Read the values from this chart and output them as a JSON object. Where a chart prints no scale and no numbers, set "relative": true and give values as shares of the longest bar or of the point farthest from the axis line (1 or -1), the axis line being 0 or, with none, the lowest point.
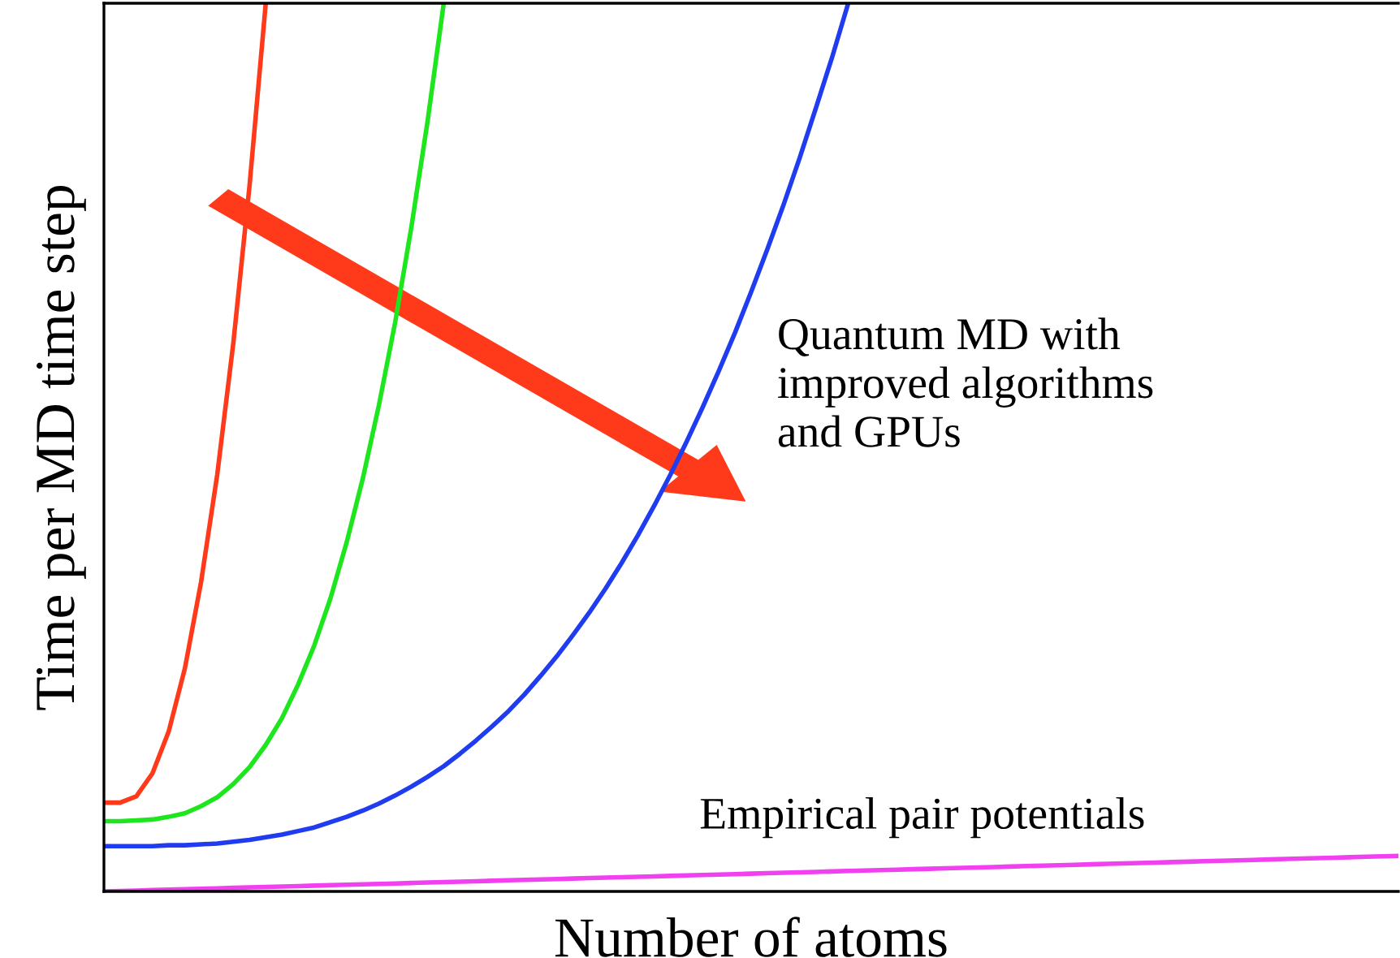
{
  "chart_data": {
    "type": "line",
    "relative": true,
    "xlabel": "Number of atoms",
    "ylabel": "Time per MD time step",
    "categories": [
      null,
      null,
      null,
      null,
      null,
      null,
      null,
      null,
      null,
      null,
      null,
      null,
      null,
      null,
      null,
      null,
      null,
      null,
      null,
      null,
      null,
      null,
      null,
      null,
      null,
      null,
      null,
      null,
      null,
      null,
      null,
      null,
      null,
      null,
      null,
      null,
      null,
      null,
      null,
      null,
      null,
      null,
      null,
      null,
      null,
      null,
      null,
      null,
      null,
      null,
      null,
      null,
      null,
      null,
      null,
      null,
      null,
      null,
      null,
      null,
      null,
      null,
      null,
      null,
      null,
      null,
      null,
      null,
      null,
      null,
      null,
      null,
      null,
      null,
      null,
      null,
      null,
      null,
      null,
      null,
      null
    ],
    "series": [
      {
        "color": "#ff3a1a",
        "values": [
          0.1,
          0.1,
          0.107,
          0.133,
          0.18,
          0.251,
          0.348,
          0.469,
          0.618,
          0.795,
          1.0,
          null,
          null,
          null,
          null,
          null,
          null,
          null,
          null,
          null,
          null,
          null,
          null,
          null,
          null,
          null,
          null,
          null,
          null,
          null,
          null,
          null,
          null,
          null,
          null,
          null,
          null,
          null,
          null,
          null,
          null,
          null,
          null,
          null,
          null,
          null,
          null,
          null,
          null,
          null,
          null,
          null,
          null,
          null,
          null,
          null,
          null,
          null,
          null,
          null,
          null,
          null,
          null,
          null,
          null,
          null,
          null,
          null,
          null,
          null,
          null,
          null,
          null,
          null,
          null,
          null,
          null,
          null,
          null,
          null,
          null
        ]
      },
      {
        "color": "#1ee61e",
        "values": [
          0.079,
          0.079,
          0.08,
          0.081,
          0.084,
          0.088,
          0.096,
          0.106,
          0.121,
          0.14,
          0.165,
          0.195,
          0.233,
          0.277,
          0.33,
          0.393,
          0.465,
          0.548,
          0.641,
          0.748,
          0.867,
          1.0,
          null,
          null,
          null,
          null,
          null,
          null,
          null,
          null,
          null,
          null,
          null,
          null,
          null,
          null,
          null,
          null,
          null,
          null,
          null,
          null,
          null,
          null,
          null,
          null,
          null,
          null,
          null,
          null,
          null,
          null,
          null,
          null,
          null,
          null,
          null,
          null,
          null,
          null,
          null,
          null,
          null,
          null,
          null,
          null,
          null,
          null,
          null,
          null,
          null,
          null,
          null,
          null,
          null,
          null,
          null,
          null,
          null,
          null,
          null
        ]
      },
      {
        "color": "#1f3cf0",
        "values": [
          0.051,
          0.051,
          0.051,
          0.051,
          0.052,
          0.052,
          0.053,
          0.054,
          0.056,
          0.058,
          0.061,
          0.064,
          0.068,
          0.072,
          0.078,
          0.084,
          0.091,
          0.099,
          0.108,
          0.118,
          0.129,
          0.141,
          0.155,
          0.17,
          0.186,
          0.203,
          0.222,
          0.243,
          0.265,
          0.289,
          0.314,
          0.341,
          0.37,
          0.401,
          0.434,
          0.469,
          0.506,
          0.545,
          0.586,
          0.629,
          0.675,
          0.723,
          0.773,
          0.826,
          0.882,
          0.939,
          1.0,
          null,
          null,
          null,
          null,
          null,
          null,
          null,
          null,
          null,
          null,
          null,
          null,
          null,
          null,
          null,
          null,
          null,
          null,
          null,
          null,
          null,
          null,
          null,
          null,
          null,
          null,
          null,
          null,
          null,
          null,
          null,
          null,
          null,
          null
        ]
      },
      {
        "color": "#f040f0",
        "values": [
          0.0,
          0.0005,
          0.001,
          0.0015,
          0.002,
          0.0025,
          0.003,
          0.0035,
          0.004,
          0.0045,
          0.005,
          0.0055,
          0.006,
          0.0065,
          0.007,
          0.0075,
          0.008,
          0.0085,
          0.009,
          0.0095,
          0.01,
          0.0105,
          0.011,
          0.0115,
          0.012,
          0.0125,
          0.013,
          0.0135,
          0.014,
          0.0145,
          0.015,
          0.0155,
          0.016,
          0.0165,
          0.017,
          0.0175,
          0.018,
          0.0185,
          0.019,
          0.0195,
          0.02,
          0.0205,
          0.021,
          0.0215,
          0.022,
          0.0225,
          0.023,
          0.0235,
          0.024,
          0.0245,
          0.025,
          0.0255,
          0.026,
          0.0265,
          0.027,
          0.0275,
          0.028,
          0.0285,
          0.029,
          0.0295,
          0.03,
          0.0305,
          0.031,
          0.0315,
          0.032,
          0.0325,
          0.033,
          0.0335,
          0.034,
          0.0345,
          0.035,
          0.0355,
          0.036,
          0.0365,
          0.037,
          0.0375,
          0.038,
          0.0385,
          0.039,
          0.0395,
          0.04
        ]
      }
    ],
    "annotations": [
      "Quantum MD with\nimproved algorithms\nand GPUs",
      "Empirical pair potentials"
    ]
  }
}
